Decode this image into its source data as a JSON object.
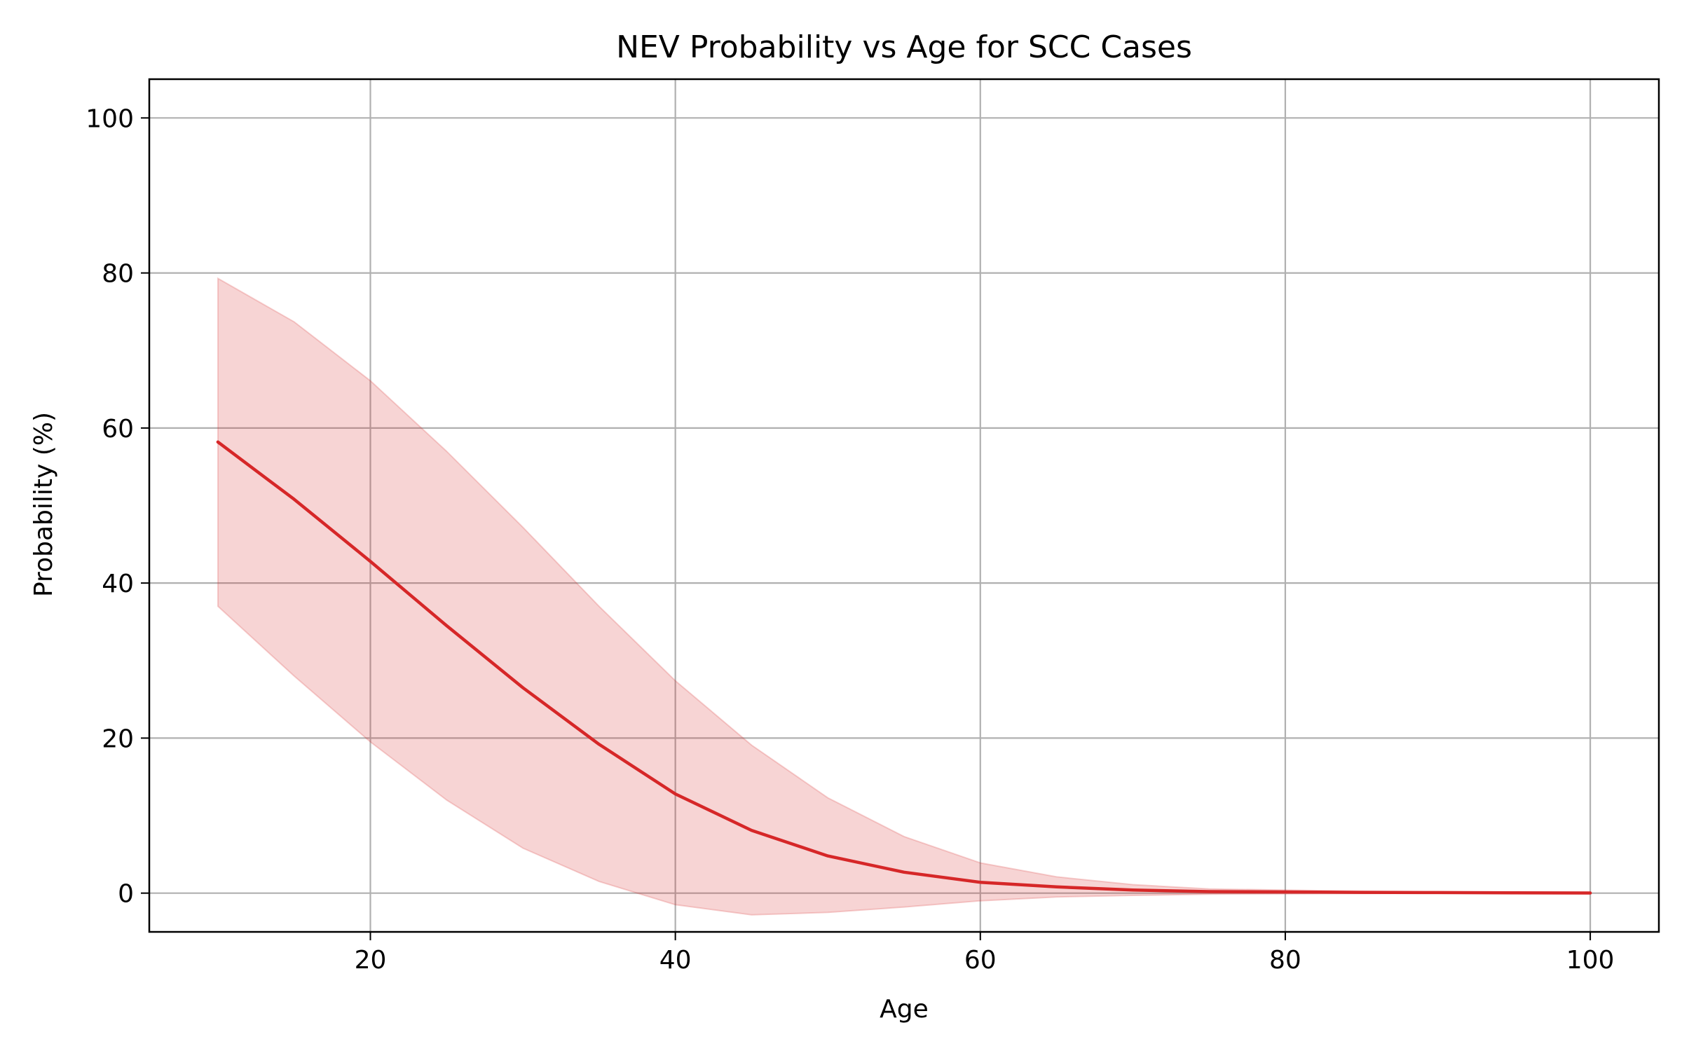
{
  "chart_data": {
    "type": "line",
    "title": "NEV Probability vs Age for SCC Cases",
    "xlabel": "Age",
    "ylabel": "Probability (%)",
    "xlim": [
      5.5,
      104.5
    ],
    "ylim": [
      -5,
      105
    ],
    "xticks": [
      20,
      40,
      60,
      80,
      100
    ],
    "yticks": [
      0,
      20,
      40,
      60,
      80,
      100
    ],
    "grid": true,
    "colors": {
      "line": "#d62728",
      "band": "#d62728",
      "grid": "#b0b0b0"
    },
    "series": [
      {
        "x": [
          10,
          15,
          20,
          25,
          30,
          35,
          40,
          45,
          50,
          55,
          60,
          65,
          70,
          75,
          80,
          85,
          90,
          95,
          100
        ],
        "values": [
          58.2,
          50.8,
          42.8,
          34.5,
          26.5,
          19.2,
          12.8,
          8.1,
          4.8,
          2.7,
          1.4,
          0.8,
          0.4,
          0.2,
          0.15,
          0.1,
          0.07,
          0.04,
          0.02
        ],
        "lower": [
          37.0,
          28.0,
          19.5,
          12.0,
          5.8,
          1.5,
          -1.5,
          -2.8,
          -2.5,
          -1.8,
          -1.0,
          -0.5,
          -0.3,
          -0.15,
          -0.1,
          -0.05,
          -0.03,
          -0.02,
          0.0
        ],
        "upper": [
          79.3,
          73.7,
          66.1,
          57.0,
          47.2,
          37.0,
          27.4,
          19.1,
          12.3,
          7.3,
          3.9,
          2.1,
          1.1,
          0.55,
          0.4,
          0.25,
          0.17,
          0.1,
          0.04
        ]
      }
    ]
  }
}
